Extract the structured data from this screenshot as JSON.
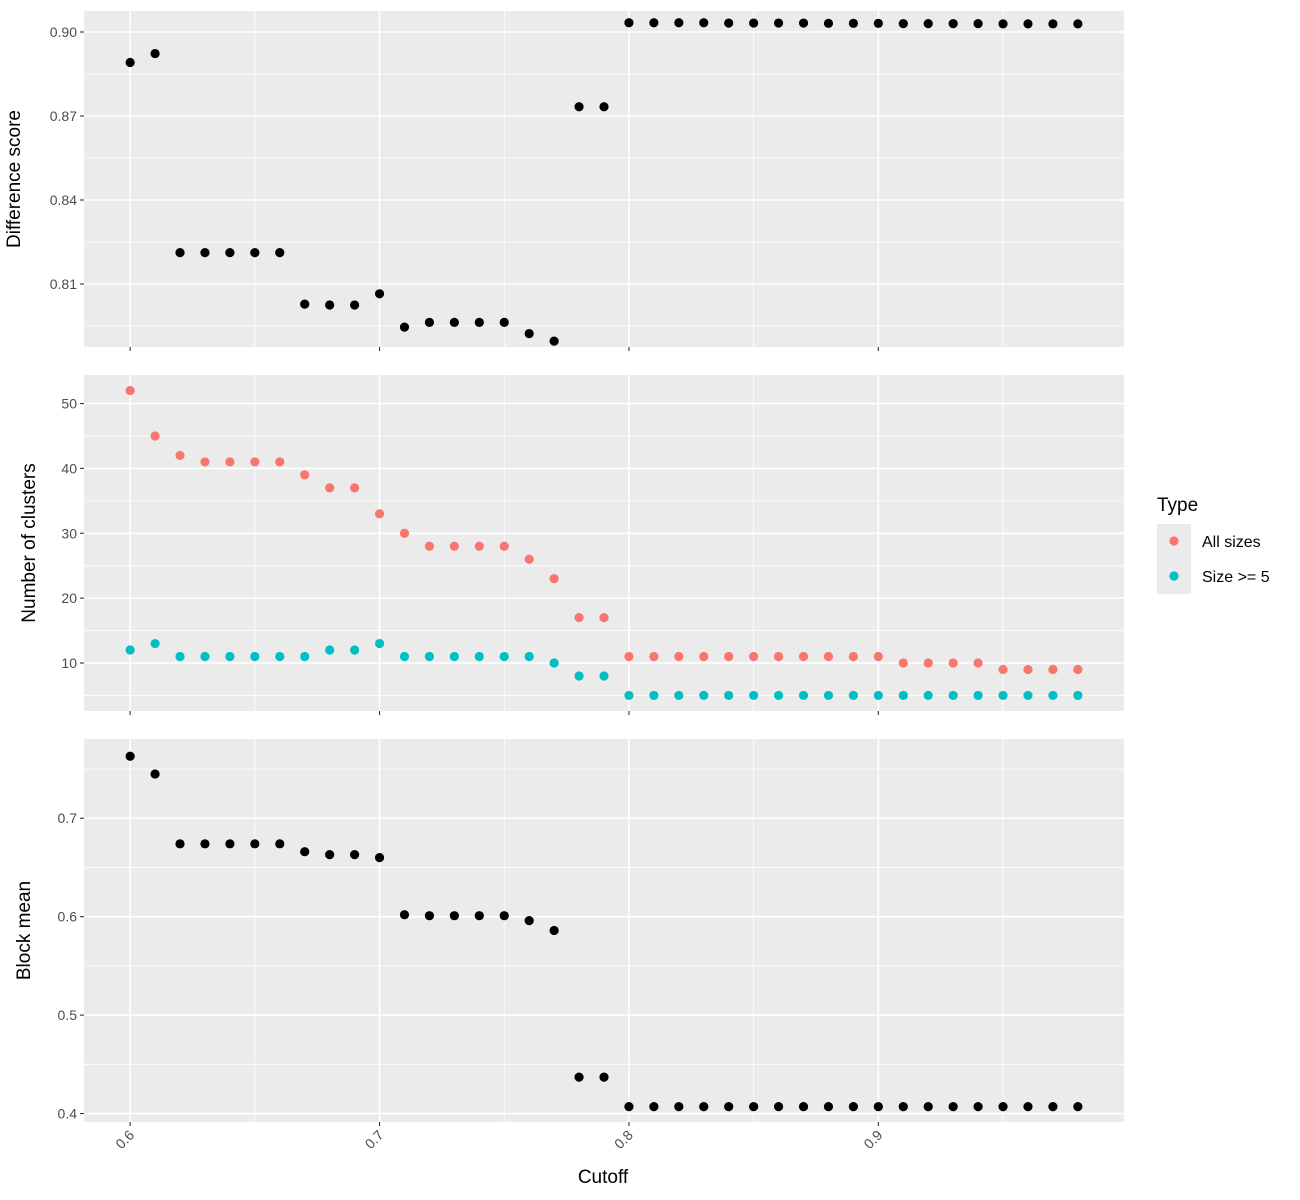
{
  "chart_data": [
    {
      "type": "scatter",
      "ylabel": "Difference score",
      "ylim": [
        0.7875,
        0.9075
      ],
      "yticks": [
        0.81,
        0.84,
        0.87,
        0.9
      ],
      "ytick_labels": [
        "0.81",
        "0.84",
        "0.87",
        "0.90"
      ],
      "grid": true,
      "series": [
        {
          "color": "#000000",
          "x": [
            0.6,
            0.61,
            0.62,
            0.63,
            0.64,
            0.65,
            0.66,
            0.67,
            0.68,
            0.69,
            0.7,
            0.71,
            0.72,
            0.73,
            0.74,
            0.75,
            0.76,
            0.77,
            0.78,
            0.79,
            0.8,
            0.81,
            0.82,
            0.83,
            0.84,
            0.85,
            0.86,
            0.87,
            0.88,
            0.89,
            0.9,
            0.91,
            0.92,
            0.93,
            0.94,
            0.95,
            0.96,
            0.97,
            0.98
          ],
          "y": [
            0.8891,
            0.8923,
            0.8212,
            0.8212,
            0.8212,
            0.8212,
            0.8212,
            0.8028,
            0.8025,
            0.8025,
            0.8065,
            0.7946,
            0.7963,
            0.7963,
            0.7963,
            0.7963,
            0.7923,
            0.7896,
            0.8733,
            0.8733,
            0.9033,
            0.9033,
            0.9033,
            0.9033,
            0.9032,
            0.9032,
            0.9032,
            0.9032,
            0.9031,
            0.9031,
            0.9031,
            0.903,
            0.903,
            0.903,
            0.903,
            0.9029,
            0.9029,
            0.9029,
            0.9029
          ]
        }
      ]
    },
    {
      "type": "scatter",
      "ylabel": "Number of clusters",
      "ylim": [
        2.6,
        54.4
      ],
      "yticks": [
        10,
        20,
        30,
        40,
        50
      ],
      "ytick_labels": [
        "10",
        "20",
        "30",
        "40",
        "50"
      ],
      "grid": true,
      "legend": {
        "title": "Type",
        "position": "right"
      },
      "series": [
        {
          "name": "All sizes",
          "color": "#F8766D",
          "x": [
            0.6,
            0.61,
            0.62,
            0.63,
            0.64,
            0.65,
            0.66,
            0.67,
            0.68,
            0.69,
            0.7,
            0.71,
            0.72,
            0.73,
            0.74,
            0.75,
            0.76,
            0.77,
            0.78,
            0.79,
            0.8,
            0.81,
            0.82,
            0.83,
            0.84,
            0.85,
            0.86,
            0.87,
            0.88,
            0.89,
            0.9,
            0.91,
            0.92,
            0.93,
            0.94,
            0.95,
            0.96,
            0.97,
            0.98
          ],
          "y": [
            52,
            45,
            42,
            41,
            41,
            41,
            41,
            39,
            37,
            37,
            33,
            30,
            28,
            28,
            28,
            28,
            26,
            23,
            17,
            17,
            11,
            11,
            11,
            11,
            11,
            11,
            11,
            11,
            11,
            11,
            11,
            10,
            10,
            10,
            10,
            9,
            9,
            9,
            9
          ]
        },
        {
          "name": "Size >= 5",
          "color": "#00BFC4",
          "x": [
            0.6,
            0.61,
            0.62,
            0.63,
            0.64,
            0.65,
            0.66,
            0.67,
            0.68,
            0.69,
            0.7,
            0.71,
            0.72,
            0.73,
            0.74,
            0.75,
            0.76,
            0.77,
            0.78,
            0.79,
            0.8,
            0.81,
            0.82,
            0.83,
            0.84,
            0.85,
            0.86,
            0.87,
            0.88,
            0.89,
            0.9,
            0.91,
            0.92,
            0.93,
            0.94,
            0.95,
            0.96,
            0.97,
            0.98
          ],
          "y": [
            12,
            13,
            11,
            11,
            11,
            11,
            11,
            11,
            12,
            12,
            13,
            11,
            11,
            11,
            11,
            11,
            11,
            10,
            8,
            8,
            5,
            5,
            5,
            5,
            5,
            5,
            5,
            5,
            5,
            5,
            5,
            5,
            5,
            5,
            5,
            5,
            5,
            5,
            5
          ]
        }
      ]
    },
    {
      "type": "scatter",
      "ylabel": "Block mean",
      "xlabel": "Cutoff",
      "ylim": [
        0.3914,
        0.7805
      ],
      "yticks": [
        0.4,
        0.5,
        0.6,
        0.7
      ],
      "ytick_labels": [
        "0.4",
        "0.5",
        "0.6",
        "0.7"
      ],
      "grid": true,
      "series": [
        {
          "color": "#000000",
          "x": [
            0.6,
            0.61,
            0.62,
            0.63,
            0.64,
            0.65,
            0.66,
            0.67,
            0.68,
            0.69,
            0.7,
            0.71,
            0.72,
            0.73,
            0.74,
            0.75,
            0.76,
            0.77,
            0.78,
            0.79,
            0.8,
            0.81,
            0.82,
            0.83,
            0.84,
            0.85,
            0.86,
            0.87,
            0.88,
            0.89,
            0.9,
            0.91,
            0.92,
            0.93,
            0.94,
            0.95,
            0.96,
            0.97,
            0.98
          ],
          "y": [
            0.763,
            0.745,
            0.674,
            0.674,
            0.674,
            0.674,
            0.674,
            0.666,
            0.663,
            0.663,
            0.66,
            0.602,
            0.601,
            0.601,
            0.601,
            0.601,
            0.596,
            0.586,
            0.437,
            0.437,
            0.407,
            0.407,
            0.407,
            0.407,
            0.407,
            0.407,
            0.407,
            0.407,
            0.407,
            0.407,
            0.407,
            0.407,
            0.407,
            0.407,
            0.407,
            0.407,
            0.407,
            0.407,
            0.407
          ]
        }
      ]
    }
  ],
  "x_axis": {
    "label": "Cutoff",
    "xlim": [
      0.5815,
      0.9985
    ],
    "ticks": [
      0.6,
      0.7,
      0.8,
      0.9
    ],
    "tick_labels": [
      "0.6",
      "0.7",
      "0.8",
      "0.9"
    ]
  },
  "legend": {
    "title": "Type",
    "items": [
      {
        "label": "All sizes",
        "color": "#F8766D"
      },
      {
        "label": "Size >= 5",
        "color": "#00BFC4"
      }
    ]
  },
  "style": {
    "panel_background": "#EBEBEB",
    "grid_color": "#FFFFFF"
  }
}
